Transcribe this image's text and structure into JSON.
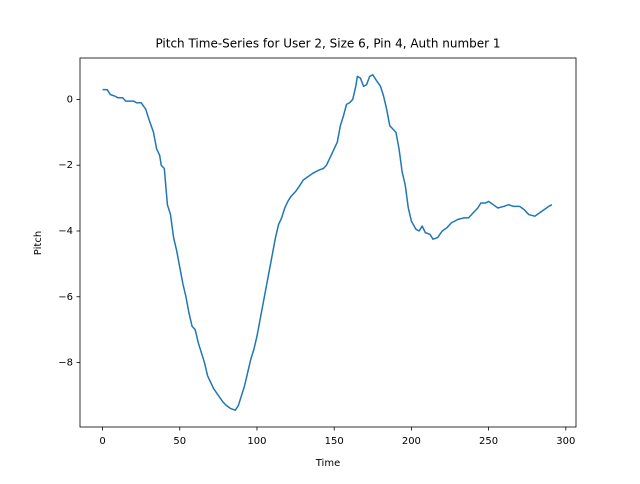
{
  "chart_data": {
    "type": "line",
    "title": "Pitch Time-Series for User 2, Size 6, Pin 4, Auth number 1",
    "xlabel": "Time",
    "ylabel": "Pitch",
    "color": "#1f77b4",
    "x": [
      0,
      3,
      5,
      8,
      10,
      13,
      15,
      20,
      22,
      25,
      28,
      30,
      33,
      35,
      37,
      38,
      40,
      42,
      44,
      46,
      48,
      50,
      52,
      54,
      56,
      58,
      60,
      62,
      64,
      66,
      68,
      70,
      72,
      75,
      78,
      80,
      83,
      86,
      88,
      90,
      92,
      94,
      96,
      98,
      100,
      102,
      104,
      106,
      108,
      110,
      112,
      114,
      116,
      118,
      120,
      122,
      125,
      128,
      130,
      133,
      136,
      140,
      143,
      145,
      147,
      150,
      152,
      154,
      156,
      158,
      160,
      162,
      164,
      165,
      167,
      169,
      171,
      173,
      175,
      177,
      180,
      182,
      184,
      186,
      188,
      190,
      192,
      194,
      196,
      198,
      200,
      203,
      205,
      207,
      209,
      212,
      214,
      217,
      220,
      223,
      226,
      230,
      234,
      237,
      240,
      243,
      245,
      248,
      250,
      253,
      256,
      260,
      263,
      266,
      270,
      273,
      276,
      280,
      283,
      286,
      289,
      291
    ],
    "values": [
      0.3,
      0.3,
      0.15,
      0.1,
      0.05,
      0.05,
      -0.05,
      -0.05,
      -0.1,
      -0.1,
      -0.3,
      -0.6,
      -1.0,
      -1.5,
      -1.7,
      -2.0,
      -2.1,
      -3.2,
      -3.5,
      -4.2,
      -4.6,
      -5.1,
      -5.6,
      -6.0,
      -6.5,
      -6.9,
      -7.0,
      -7.4,
      -7.7,
      -8.0,
      -8.4,
      -8.6,
      -8.8,
      -9.0,
      -9.2,
      -9.3,
      -9.4,
      -9.45,
      -9.3,
      -9.0,
      -8.7,
      -8.3,
      -7.9,
      -7.6,
      -7.2,
      -6.7,
      -6.2,
      -5.7,
      -5.2,
      -4.7,
      -4.2,
      -3.8,
      -3.6,
      -3.3,
      -3.1,
      -2.95,
      -2.8,
      -2.6,
      -2.45,
      -2.35,
      -2.25,
      -2.15,
      -2.1,
      -2.0,
      -1.8,
      -1.5,
      -1.3,
      -0.8,
      -0.5,
      -0.15,
      -0.1,
      0.0,
      0.4,
      0.7,
      0.65,
      0.4,
      0.45,
      0.7,
      0.75,
      0.6,
      0.4,
      0.1,
      -0.3,
      -0.8,
      -0.9,
      -1.0,
      -1.5,
      -2.2,
      -2.6,
      -3.3,
      -3.7,
      -3.95,
      -4.0,
      -3.85,
      -4.05,
      -4.1,
      -4.25,
      -4.2,
      -4.0,
      -3.9,
      -3.75,
      -3.65,
      -3.6,
      -3.6,
      -3.45,
      -3.3,
      -3.15,
      -3.15,
      -3.1,
      -3.2,
      -3.3,
      -3.25,
      -3.2,
      -3.25,
      -3.25,
      -3.35,
      -3.5,
      -3.55,
      -3.45,
      -3.35,
      -3.25,
      -3.2
    ],
    "xlim": [
      -14.6,
      306.6
    ],
    "ylim": [
      -9.96,
      1.26
    ],
    "xticks": [
      0,
      50,
      100,
      150,
      200,
      250,
      300
    ],
    "yticks": [
      {
        "value": -8,
        "label": "−8"
      },
      {
        "value": -6,
        "label": "−6"
      },
      {
        "value": -4,
        "label": "−4"
      },
      {
        "value": -2,
        "label": "−2"
      },
      0
    ]
  }
}
